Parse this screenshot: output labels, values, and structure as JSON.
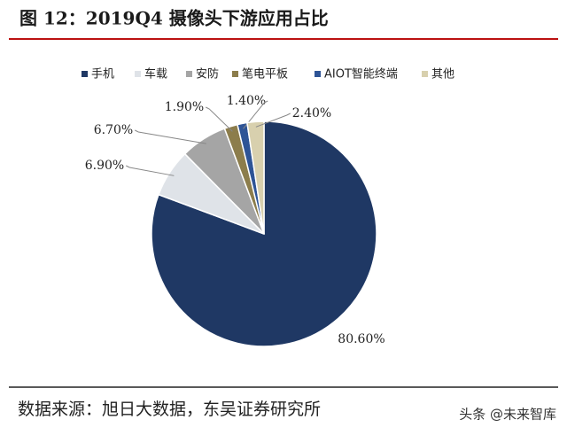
{
  "chart_data": {
    "type": "pie",
    "title": "图 12：2019Q4 摄像头下游应用占比",
    "categories": [
      "手机",
      "车载",
      "安防",
      "笔电平板",
      "AIOT智能终端",
      "其他"
    ],
    "values": [
      80.6,
      6.9,
      6.7,
      1.9,
      1.4,
      2.4
    ],
    "value_labels": [
      "80.60%",
      "6.90%",
      "6.70%",
      "1.90%",
      "1.40%",
      "2.40%"
    ],
    "colors": [
      "#1f3864",
      "#dfe3e8",
      "#a5a5a5",
      "#8c7d4c",
      "#2e5496",
      "#d8d0ae"
    ],
    "legend": "top",
    "source": "数据来源：旭日大数据，东吴证券研究所",
    "watermark": "头条 @未来智库"
  }
}
